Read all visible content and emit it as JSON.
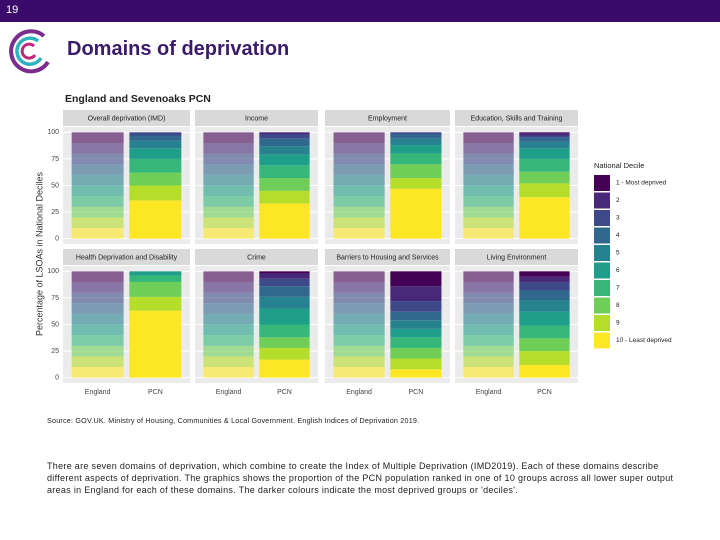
{
  "page_number": "19",
  "title": "Domains of deprivation",
  "chart_data": {
    "type": "bar",
    "stacked": true,
    "title": "England and Sevenoaks PCN",
    "y_label": "Percentage of LSOAs in National Deciles",
    "legend_title": "National Decile",
    "categories": [
      "England",
      "PCN"
    ],
    "ylim": [
      -5,
      105
    ],
    "yticks": [
      0,
      25,
      50,
      75,
      100
    ],
    "grid": true,
    "series": [
      {
        "name": "1 - Most deprived",
        "color": "#440154"
      },
      {
        "name": "2",
        "color": "#482878"
      },
      {
        "name": "3",
        "color": "#3e4989"
      },
      {
        "name": "4",
        "color": "#31688e"
      },
      {
        "name": "5",
        "color": "#26828e"
      },
      {
        "name": "6",
        "color": "#1f9e89"
      },
      {
        "name": "7",
        "color": "#35b779"
      },
      {
        "name": "8",
        "color": "#6ece58"
      },
      {
        "name": "9",
        "color": "#b5de2b"
      },
      {
        "name": "10 - Least deprived",
        "color": "#fde725"
      }
    ],
    "panels": [
      {
        "title": "Overall deprivation (IMD)",
        "values": [
          [
            10,
            0
          ],
          [
            10,
            0
          ],
          [
            10,
            3
          ],
          [
            10,
            5
          ],
          [
            10,
            7
          ],
          [
            10,
            10
          ],
          [
            10,
            13
          ],
          [
            10,
            12
          ],
          [
            10,
            14
          ],
          [
            10,
            36
          ]
        ]
      },
      {
        "title": "Income",
        "values": [
          [
            10,
            0
          ],
          [
            10,
            2
          ],
          [
            10,
            4
          ],
          [
            10,
            7
          ],
          [
            10,
            8
          ],
          [
            10,
            10
          ],
          [
            10,
            12
          ],
          [
            10,
            12
          ],
          [
            10,
            12
          ],
          [
            10,
            33
          ]
        ]
      },
      {
        "title": "Employment",
        "values": [
          [
            10,
            0
          ],
          [
            10,
            0
          ],
          [
            10,
            2
          ],
          [
            10,
            4
          ],
          [
            10,
            6
          ],
          [
            10,
            8
          ],
          [
            10,
            10
          ],
          [
            10,
            13
          ],
          [
            10,
            10
          ],
          [
            10,
            47
          ]
        ]
      },
      {
        "title": "Education, Skills and Training",
        "values": [
          [
            10,
            1
          ],
          [
            10,
            2
          ],
          [
            10,
            2
          ],
          [
            10,
            4
          ],
          [
            10,
            6
          ],
          [
            10,
            10
          ],
          [
            10,
            12
          ],
          [
            10,
            11
          ],
          [
            10,
            13
          ],
          [
            10,
            39
          ]
        ]
      },
      {
        "title": "Health Deprivation and Disability",
        "values": [
          [
            10,
            0
          ],
          [
            10,
            0
          ],
          [
            10,
            0
          ],
          [
            10,
            0
          ],
          [
            10,
            0
          ],
          [
            10,
            4
          ],
          [
            10,
            6
          ],
          [
            10,
            14
          ],
          [
            10,
            13
          ],
          [
            10,
            63
          ]
        ]
      },
      {
        "title": "Crime",
        "values": [
          [
            10,
            2
          ],
          [
            10,
            5
          ],
          [
            10,
            7
          ],
          [
            10,
            10
          ],
          [
            10,
            11
          ],
          [
            10,
            15
          ],
          [
            10,
            12
          ],
          [
            10,
            10
          ],
          [
            10,
            11
          ],
          [
            10,
            17
          ]
        ]
      },
      {
        "title": "Barriers to Housing and Services",
        "values": [
          [
            10,
            14
          ],
          [
            10,
            14
          ],
          [
            10,
            10
          ],
          [
            10,
            8
          ],
          [
            10,
            8
          ],
          [
            10,
            8
          ],
          [
            10,
            10
          ],
          [
            10,
            10
          ],
          [
            10,
            10
          ],
          [
            10,
            8
          ]
        ]
      },
      {
        "title": "Living Environment",
        "values": [
          [
            10,
            5
          ],
          [
            10,
            5
          ],
          [
            10,
            8
          ],
          [
            10,
            9
          ],
          [
            10,
            11
          ],
          [
            10,
            13
          ],
          [
            10,
            12
          ],
          [
            10,
            12
          ],
          [
            10,
            13
          ],
          [
            10,
            12
          ]
        ]
      }
    ]
  },
  "source": "Source: GOV.UK. Ministry of Housing, Communities & Local Government. English Indices of Deprivation 2019.",
  "body": "There are seven domains of deprivation, which combine to create the Index of Multiple Deprivation (IMD2019). Each of these domains describe different aspects of deprivation. The graphics shows the proportion of the PCN population ranked in one of 10 groups across all lower super output areas in England for each of these domains. The darker colours indicate the most deprived groups or 'deciles'."
}
